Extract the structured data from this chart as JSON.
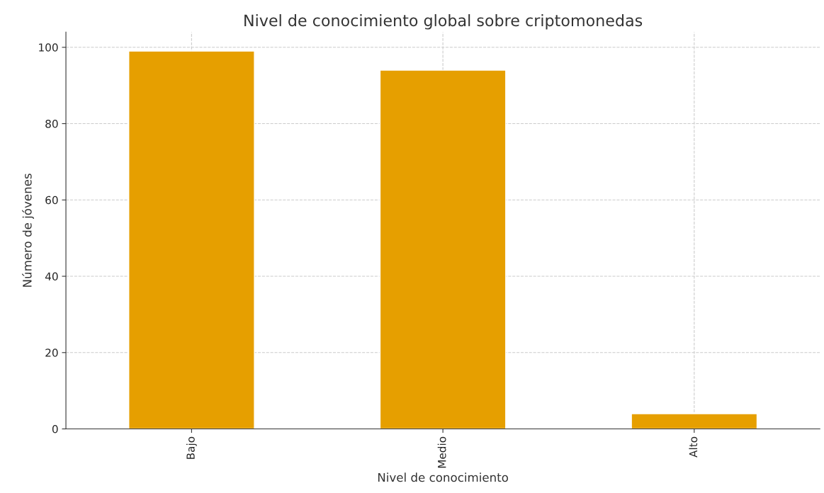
{
  "chart_data": {
    "type": "bar",
    "title": "Nivel de conocimiento global sobre criptomonedas",
    "xlabel": "Nivel de conocimiento",
    "ylabel": "Número de jóvenes",
    "categories": [
      "Bajo",
      "Medio",
      "Alto"
    ],
    "values": [
      99,
      94,
      4
    ],
    "color": "#e69f00",
    "ylim": [
      0,
      104
    ],
    "yticks": [
      0,
      20,
      40,
      60,
      80,
      100
    ],
    "grid": true
  }
}
